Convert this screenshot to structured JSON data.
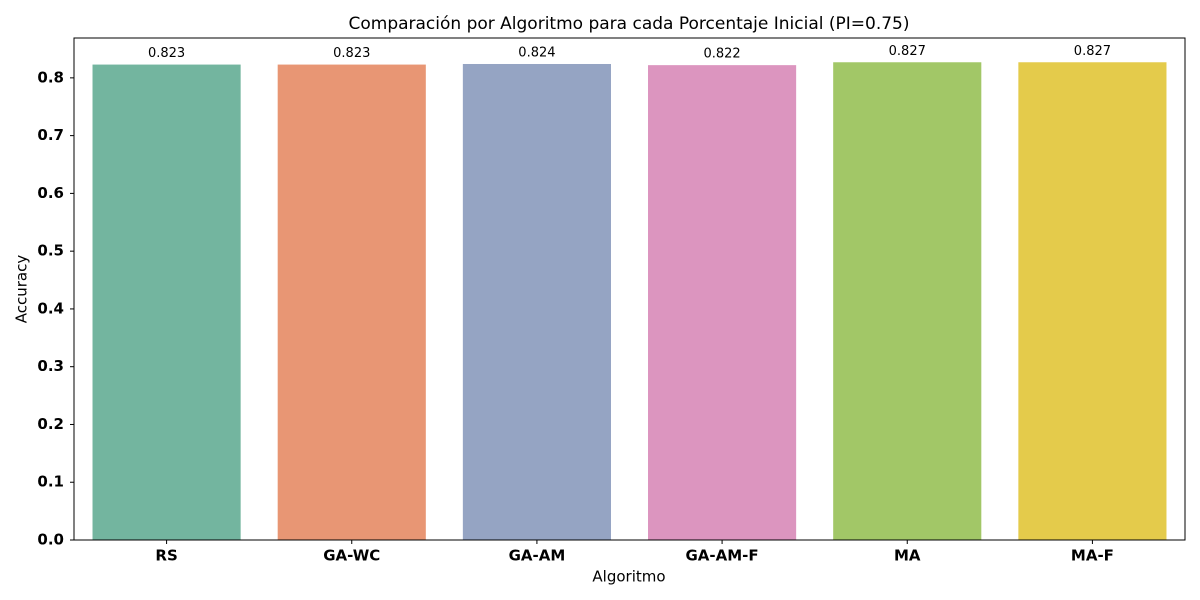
{
  "chart_data": {
    "type": "bar",
    "title": "Comparación por Algoritmo para cada Porcentaje Inicial (PI=0.75)",
    "x_label": "Algoritmo",
    "y_label": "Accuracy",
    "categories": [
      "RS",
      "GA-WC",
      "GA-AM",
      "GA-AM-F",
      "MA",
      "MA-F"
    ],
    "values": [
      0.823,
      0.823,
      0.824,
      0.822,
      0.827,
      0.827
    ],
    "colors": [
      "#73b59f",
      "#e89674",
      "#95a4c3",
      "#dc95bf",
      "#a2c767",
      "#e4cb4b"
    ],
    "ylim": [
      0,
      0.869
    ],
    "yticks": [
      {
        "value": 0,
        "label": "0.0"
      },
      0.1,
      0.2,
      0.3,
      0.4,
      0.5,
      0.6,
      0.7,
      0.8
    ]
  }
}
